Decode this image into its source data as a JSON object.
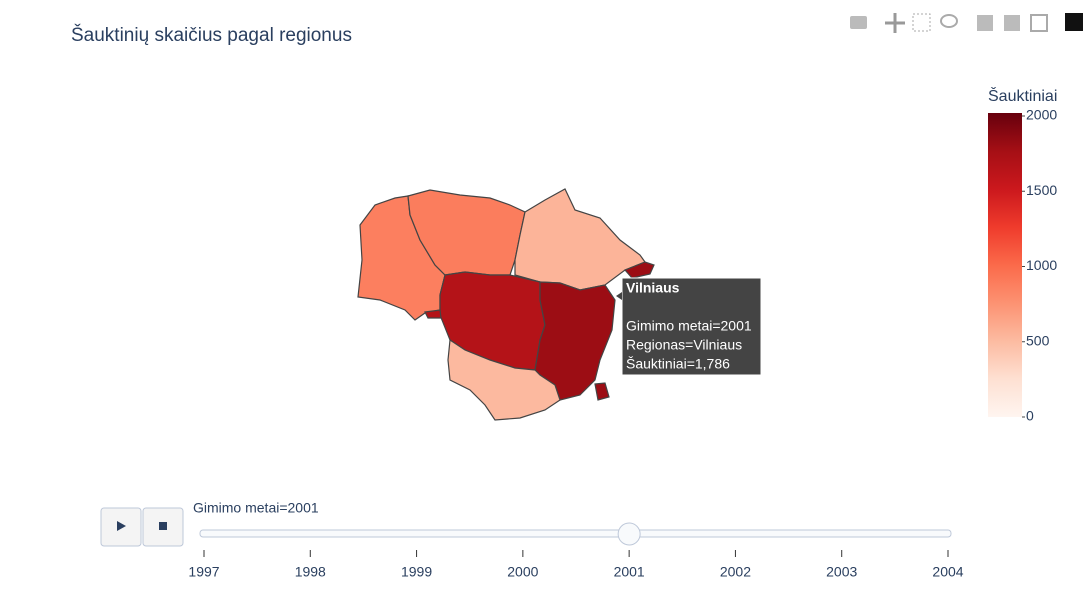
{
  "chart_data": {
    "type": "choropleth",
    "title": "Šauktinių skaičius pagal regionus",
    "categories": [
      null,
      null,
      null,
      null,
      "Vilniaus",
      null
    ],
    "values": [
      870,
      880,
      540,
      1650,
      1786,
      510
    ],
    "value_labels": [
      null,
      null,
      null,
      null,
      "1,786",
      null
    ],
    "colorbar": {
      "title": "Šauktiniai",
      "lim": [
        0,
        2000
      ],
      "ticks": [
        0,
        500,
        1000,
        1500,
        2000
      ]
    },
    "colorscale": [
      [
        0,
        "#fff5f0"
      ],
      [
        0.125,
        "#fee0d2"
      ],
      [
        0.25,
        "#fcbba1"
      ],
      [
        0.375,
        "#fc9272"
      ],
      [
        0.5,
        "#fb6a4a"
      ],
      [
        0.625,
        "#ef3b2c"
      ],
      [
        0.75,
        "#cb181d"
      ],
      [
        0.875,
        "#a50f15"
      ],
      [
        1,
        "#67000d"
      ]
    ],
    "hover": {
      "title": "Vilniaus",
      "lines": [
        "Gimimo metai=2001",
        "Regionas=Vilniaus",
        "Šauktiniai=1,786"
      ]
    },
    "slider": {
      "current_label": "Gimimo metai=2001",
      "steps": [
        1997,
        1998,
        1999,
        2000,
        2001,
        2002,
        2003,
        2004
      ],
      "active": 2001
    }
  }
}
